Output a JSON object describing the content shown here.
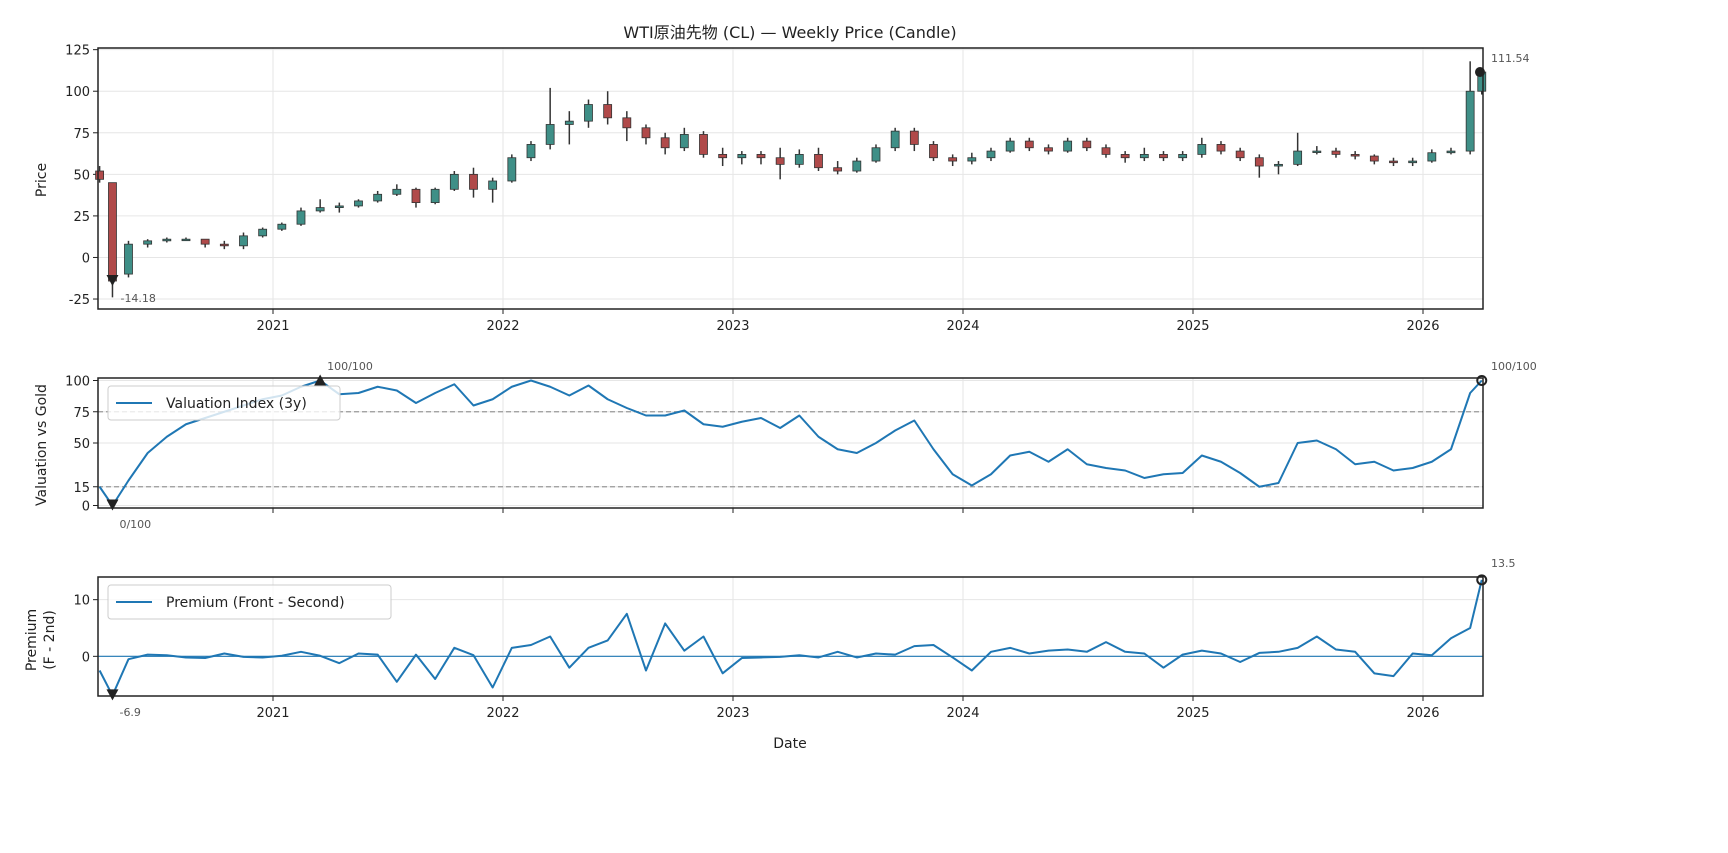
{
  "chart_data": [
    {
      "type": "candlestick",
      "title": "WTI原油先物 (CL) — Weekly Price (Candle)",
      "ylabel": "Price",
      "ylim": [
        -31,
        126
      ],
      "yticks": [
        -25,
        0,
        25,
        50,
        75,
        100,
        125
      ],
      "xticks": [
        "2021",
        "2022",
        "2023",
        "2024",
        "2025",
        "2026"
      ],
      "grid": true,
      "colors": {
        "up": "#3f8f87",
        "down": "#b04a4a",
        "wick": "#333333"
      },
      "annotations": {
        "min_label": "-14.18",
        "last_label": "111.54"
      },
      "dates": [
        "2020-03-30",
        "2020-04-20",
        "2020-05-15",
        "2020-06-15",
        "2020-07-15",
        "2020-08-15",
        "2020-09-15",
        "2020-10-15",
        "2020-11-15",
        "2020-12-15",
        "2021-01-15",
        "2021-02-15",
        "2021-03-15",
        "2021-04-15",
        "2021-05-15",
        "2021-06-15",
        "2021-07-15",
        "2021-08-15",
        "2021-09-15",
        "2021-10-15",
        "2021-11-15",
        "2021-12-15",
        "2022-01-15",
        "2022-02-15",
        "2022-03-15",
        "2022-04-15",
        "2022-05-15",
        "2022-06-15",
        "2022-07-15",
        "2022-08-15",
        "2022-09-15",
        "2022-10-15",
        "2022-11-15",
        "2022-12-15",
        "2023-01-15",
        "2023-02-15",
        "2023-03-15",
        "2023-04-15",
        "2023-05-15",
        "2023-06-15",
        "2023-07-15",
        "2023-08-15",
        "2023-09-15",
        "2023-10-15",
        "2023-11-15",
        "2023-12-15",
        "2024-01-15",
        "2024-02-15",
        "2024-03-15",
        "2024-04-15",
        "2024-05-15",
        "2024-06-15",
        "2024-07-15",
        "2024-08-15",
        "2024-09-15",
        "2024-10-15",
        "2024-11-15",
        "2024-12-15",
        "2025-01-15",
        "2025-02-15",
        "2025-03-15",
        "2025-04-15",
        "2025-05-15",
        "2025-06-15",
        "2025-07-15",
        "2025-08-15",
        "2025-09-15",
        "2025-10-15",
        "2025-11-15",
        "2025-12-15",
        "2026-01-15",
        "2026-02-15",
        "2026-03-15",
        "2026-04-03"
      ],
      "ohlc": [
        [
          52,
          55,
          45,
          47
        ],
        [
          45,
          45,
          -24,
          -14.18
        ],
        [
          -10,
          10,
          -12,
          8
        ],
        [
          8,
          11,
          6,
          10
        ],
        [
          10,
          12,
          9,
          11
        ],
        [
          11,
          12,
          10,
          11
        ],
        [
          11,
          11,
          6,
          8
        ],
        [
          8,
          10,
          5,
          7
        ],
        [
          7,
          15,
          5,
          13
        ],
        [
          13,
          18,
          12,
          17
        ],
        [
          17,
          21,
          16,
          20
        ],
        [
          20,
          30,
          19,
          28
        ],
        [
          28,
          35,
          27,
          30
        ],
        [
          30,
          33,
          27,
          31
        ],
        [
          31,
          35,
          30,
          34
        ],
        [
          34,
          40,
          33,
          38
        ],
        [
          38,
          44,
          37,
          41
        ],
        [
          41,
          42,
          30,
          33
        ],
        [
          33,
          42,
          32,
          41
        ],
        [
          41,
          52,
          40,
          50
        ],
        [
          50,
          54,
          36,
          41
        ],
        [
          41,
          48,
          33,
          46
        ],
        [
          46,
          62,
          45,
          60
        ],
        [
          60,
          70,
          58,
          68
        ],
        [
          68,
          102,
          65,
          80
        ],
        [
          80,
          88,
          68,
          82
        ],
        [
          82,
          95,
          78,
          92
        ],
        [
          92,
          100,
          80,
          84
        ],
        [
          84,
          88,
          70,
          78
        ],
        [
          78,
          80,
          68,
          72
        ],
        [
          72,
          75,
          62,
          66
        ],
        [
          66,
          78,
          64,
          74
        ],
        [
          74,
          76,
          60,
          62
        ],
        [
          62,
          66,
          55,
          60
        ],
        [
          60,
          64,
          56,
          62
        ],
        [
          62,
          64,
          56,
          60
        ],
        [
          60,
          66,
          47,
          56
        ],
        [
          56,
          65,
          54,
          62
        ],
        [
          62,
          66,
          52,
          54
        ],
        [
          54,
          58,
          50,
          52
        ],
        [
          52,
          60,
          51,
          58
        ],
        [
          58,
          68,
          57,
          66
        ],
        [
          66,
          78,
          64,
          76
        ],
        [
          76,
          78,
          64,
          68
        ],
        [
          68,
          70,
          58,
          60
        ],
        [
          60,
          62,
          55,
          58
        ],
        [
          58,
          63,
          56,
          60
        ],
        [
          60,
          66,
          58,
          64
        ],
        [
          64,
          72,
          63,
          70
        ],
        [
          70,
          72,
          64,
          66
        ],
        [
          66,
          68,
          62,
          64
        ],
        [
          64,
          72,
          63,
          70
        ],
        [
          70,
          72,
          64,
          66
        ],
        [
          66,
          68,
          60,
          62
        ],
        [
          62,
          64,
          57,
          60
        ],
        [
          60,
          66,
          58,
          62
        ],
        [
          62,
          64,
          58,
          60
        ],
        [
          60,
          64,
          58,
          62
        ],
        [
          62,
          72,
          60,
          68
        ],
        [
          68,
          70,
          62,
          64
        ],
        [
          64,
          66,
          58,
          60
        ],
        [
          60,
          62,
          48,
          55
        ],
        [
          55,
          58,
          50,
          56
        ],
        [
          56,
          75,
          55,
          64
        ],
        [
          64,
          67,
          62,
          64
        ],
        [
          64,
          66,
          60,
          62
        ],
        [
          62,
          64,
          59,
          61
        ],
        [
          61,
          62,
          56,
          58
        ],
        [
          58,
          60,
          55,
          57
        ],
        [
          57,
          60,
          55,
          58
        ],
        [
          58,
          65,
          57,
          63
        ],
        [
          63,
          66,
          62,
          64
        ],
        [
          64,
          118,
          62,
          100
        ],
        [
          100,
          112,
          98,
          111.54
        ]
      ]
    },
    {
      "type": "line",
      "ylabel": "Valuation vs Gold",
      "ylim": [
        -2,
        102
      ],
      "yticks": [
        0,
        15,
        50,
        75,
        100
      ],
      "reference_lines": [
        75,
        15
      ],
      "grid": true,
      "legend": {
        "label": "Valuation Index (3y)",
        "placement": "upper-left"
      },
      "color": "#1f77b4",
      "annotations": {
        "max_label": "100/100",
        "min_label": "0/100",
        "last_label": "100/100"
      },
      "values": [
        15,
        0,
        20,
        42,
        55,
        65,
        70,
        75,
        80,
        85,
        88,
        95,
        100,
        89,
        90,
        95,
        92,
        82,
        90,
        97,
        80,
        85,
        95,
        100,
        95,
        88,
        96,
        85,
        78,
        72,
        72,
        76,
        65,
        63,
        67,
        70,
        62,
        72,
        55,
        45,
        42,
        50,
        60,
        68,
        45,
        25,
        16,
        25,
        40,
        43,
        35,
        45,
        33,
        30,
        28,
        22,
        25,
        26,
        40,
        35,
        26,
        15,
        18,
        50,
        52,
        45,
        33,
        35,
        28,
        30,
        35,
        45,
        90,
        100
      ]
    },
    {
      "type": "line",
      "ylabel": "Premium\n(F - 2nd)",
      "ylabel_lines": [
        "Premium",
        "(F - 2nd)"
      ],
      "xlabel": "Date",
      "ylim": [
        -7,
        14
      ],
      "yticks": [
        0,
        10
      ],
      "xticks": [
        "2021",
        "2022",
        "2023",
        "2024",
        "2025",
        "2026"
      ],
      "grid": true,
      "legend": {
        "label": "Premium (Front - Second)",
        "placement": "upper-left"
      },
      "color": "#1f77b4",
      "annotations": {
        "min_label": "-6.9",
        "last_label": "13.5"
      },
      "values": [
        -2.5,
        -6.9,
        -0.5,
        0.3,
        0.2,
        -0.2,
        -0.3,
        0.5,
        -0.1,
        -0.2,
        0.1,
        0.8,
        0.1,
        -1.2,
        0.5,
        0.3,
        -4.5,
        0.3,
        -4.0,
        1.5,
        0.2,
        -5.5,
        1.5,
        2.0,
        3.5,
        -2.0,
        1.5,
        2.8,
        7.5,
        -2.5,
        5.8,
        1.0,
        3.5,
        -3.0,
        -0.3,
        -0.2,
        -0.1,
        0.2,
        -0.2,
        0.8,
        -0.2,
        0.5,
        0.3,
        1.8,
        2.0,
        -0.2,
        -2.5,
        0.8,
        1.5,
        0.5,
        1.0,
        1.2,
        0.8,
        2.5,
        0.8,
        0.5,
        -2.0,
        0.3,
        1.0,
        0.5,
        -1.0,
        0.6,
        0.8,
        1.5,
        3.5,
        1.2,
        0.8,
        -3.0,
        -3.5,
        0.5,
        0.2,
        3.2,
        5.0,
        13.5
      ]
    }
  ]
}
